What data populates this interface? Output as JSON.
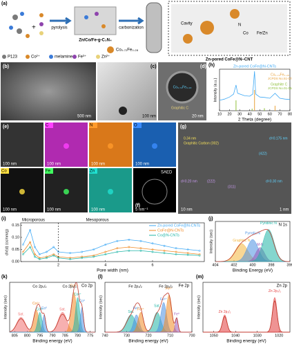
{
  "figure": {
    "a": {
      "label": "(a)",
      "legend": [
        "P123",
        "Co²⁺",
        "melamine",
        "Fe³⁺",
        "Zn²⁺"
      ],
      "step1": "pyrolysis",
      "step2": "carbonization",
      "intermediate": "Zn/Co/Fe-g-C₃N₄",
      "alloy": "Co₀.₇₂Fe₀.₂₈",
      "product": "Zn-pored CoFe@N–CNT",
      "inset": [
        "Cavity",
        "N",
        "Co",
        "Fe/Zn"
      ]
    },
    "b": {
      "label": "(b)",
      "scale": "500 nm"
    },
    "c": {
      "label": "(c)",
      "scale": "100 nm"
    },
    "d": {
      "label": "(d)",
      "particle": "Co₀.₇₂Fe₀.₂₈",
      "shell": "Graphitic C",
      "scale": "20 nm"
    },
    "e": {
      "label": "(e)",
      "maps": [
        "C",
        "N",
        "O",
        "Co",
        "Fe",
        "Zn"
      ],
      "scale": "100 nm"
    },
    "f": {
      "label": "(f)",
      "title": "SAED",
      "scale": "5 nm⁻¹"
    },
    "g": {
      "label": "(g)",
      "fringes": [
        "0.34 nm",
        "Graphitic Carbon (002)",
        "d=0.175 nm",
        "(422)",
        "d=0.20 nm",
        "(222)",
        "(311)",
        "d=0.30 nm"
      ],
      "scale": "10 nm",
      "inset_scale": "1 nm"
    }
  },
  "chart_data": [
    {
      "type": "xrd",
      "label": "(h)",
      "xlabel": "2 Theta (degree)",
      "ylabel": "Intensity (a.u.)",
      "xlim": [
        10,
        80
      ],
      "ylim": [
        0,
        1
      ],
      "xticks": [
        10,
        20,
        30,
        40,
        50,
        60,
        70,
        80
      ],
      "x": [
        10,
        15,
        20,
        24,
        26.4,
        28,
        35,
        40,
        43,
        44.8,
        46,
        50,
        55,
        60,
        65.2,
        70,
        75,
        80
      ],
      "series": [
        {
          "name": "Zn-pored CoFe@N-CNTs",
          "color": "#3fa9f5",
          "values": [
            0.25,
            0.28,
            0.33,
            0.4,
            0.62,
            0.42,
            0.36,
            0.35,
            0.4,
            0.95,
            0.4,
            0.33,
            0.32,
            0.3,
            0.42,
            0.3,
            0.28,
            0.27
          ]
        }
      ],
      "references": [
        {
          "name": "Co₀.₇₂Fe₀.₂₈",
          "card": "JCPDS No.51-0740",
          "color": "#e8a13a",
          "positions": [
            44.8,
            65.2
          ],
          "heights": [
            0.5,
            0.12
          ]
        },
        {
          "name": "Graphite C",
          "card": "JCPDS No.01-0646",
          "color": "#8fbf3a",
          "positions": [
            26.4,
            42.4,
            54.6
          ],
          "heights": [
            0.25,
            0.05,
            0.06
          ]
        }
      ]
    },
    {
      "type": "line",
      "label": "(i)",
      "xlabel": "Pore width (nm)",
      "ylabel": "dV(d) (cc/nm/g)",
      "xlim": [
        0.4,
        8.2
      ],
      "ylim": [
        0,
        0.16
      ],
      "xticks": [
        2,
        4,
        6
      ],
      "yticks": [
        {
          "value": 0,
          "label": "0.00"
        },
        {
          "value": 0.05,
          "label": "0.05"
        },
        {
          "value": 0.1,
          "label": "0.10"
        },
        {
          "value": 0.15,
          "label": "0.15"
        }
      ],
      "annotations": [
        "Microporous",
        "Mesoporous"
      ],
      "x": [
        0.5,
        0.8,
        1,
        1.2,
        1.5,
        1.8,
        2,
        2.5,
        3,
        3.5,
        4,
        4.5,
        5,
        5.5,
        6,
        6.5,
        7,
        7.5,
        8
      ],
      "series": [
        {
          "name": "Zn-pored CoFe@N-CNTs",
          "color": "#3fa9f5",
          "values": [
            0.07,
            0.13,
            0.06,
            0.03,
            0.04,
            0.06,
            0.04,
            0.035,
            0.04,
            0.05,
            0.07,
            0.085,
            0.09,
            0.085,
            0.075,
            0.065,
            0.055,
            0.05,
            0.045
          ]
        },
        {
          "name": "CoFe@N-CNTs",
          "color": "#f08a24",
          "values": [
            0.04,
            0.08,
            0.03,
            0.015,
            0.02,
            0.03,
            0.02,
            0.015,
            0.02,
            0.025,
            0.04,
            0.055,
            0.06,
            0.055,
            0.05,
            0.045,
            0.04,
            0.035,
            0.03
          ]
        },
        {
          "name": "Co@N-CNTs",
          "color": "#1fb5a6",
          "values": [
            0.03,
            0.06,
            0.02,
            0.01,
            0.015,
            0.025,
            0.015,
            0.01,
            0.015,
            0.02,
            0.03,
            0.04,
            0.045,
            0.045,
            0.04,
            0.035,
            0.03,
            0.028,
            0.025
          ]
        }
      ]
    },
    {
      "type": "xps",
      "label": "(j)",
      "title": "N 1s",
      "xlabel": "Binding Energy (eV)",
      "ylabel": "Intensity (sec)",
      "xlim": [
        404,
        396
      ],
      "ylim": [
        0,
        1
      ],
      "xticks": [
        404,
        402,
        400,
        398,
        396
      ],
      "peaks": [
        {
          "name": "Graphitic N",
          "center": 401.2,
          "height": 0.45,
          "width": 1.6,
          "color": "#f4b63c"
        },
        {
          "name": "Pyrrolic N",
          "center": 400,
          "height": 0.55,
          "width": 1.4,
          "color": "#4a90e2"
        },
        {
          "name": "M-N",
          "center": 399.2,
          "height": 0.35,
          "width": 1.1,
          "color": "#9b59b6"
        },
        {
          "name": "Pyridinic N",
          "center": 398.3,
          "height": 0.8,
          "width": 1.4,
          "color": "#1fb5a6"
        }
      ]
    },
    {
      "type": "xps",
      "label": "(k)",
      "title": "Co 2p",
      "xlabel": "Binding energy (eV)",
      "ylabel": "Intensity (sec)",
      "xlim": [
        807,
        773
      ],
      "ylim": [
        0,
        1
      ],
      "xticks": [
        805,
        800,
        795,
        790,
        785,
        780,
        775
      ],
      "annotations": [
        "Co 2p₁/₂",
        "Co 2p₃/₂"
      ],
      "peaks": [
        {
          "name": "Sat.",
          "center": 802.5,
          "height": 0.3,
          "width": 4,
          "color": "#f07070"
        },
        {
          "name": "Co²⁺",
          "center": 796.5,
          "height": 0.45,
          "width": 2.5,
          "color": "#f08a24"
        },
        {
          "name": "Co³⁺",
          "center": 795,
          "height": 0.4,
          "width": 2,
          "color": "#1fb5a6"
        },
        {
          "name": "Co⁰",
          "center": 793.3,
          "height": 0.35,
          "width": 1.5,
          "color": "#4a90e2"
        },
        {
          "name": "Sat.",
          "center": 786,
          "height": 0.4,
          "width": 4,
          "color": "#f07070"
        },
        {
          "name": "Co²⁺",
          "center": 781.5,
          "height": 0.8,
          "width": 2.5,
          "color": "#f08a24"
        },
        {
          "name": "Co³⁺",
          "center": 780,
          "height": 0.7,
          "width": 2,
          "color": "#1fb5a6"
        },
        {
          "name": "Co⁰",
          "center": 778.3,
          "height": 0.5,
          "width": 1.5,
          "color": "#4a90e2"
        }
      ]
    },
    {
      "type": "xps",
      "label": "(l)",
      "title": "Fe 2p",
      "xlabel": "Binding energy (eV)",
      "ylabel": "Intensity (sec)",
      "xlim": [
        740,
        700
      ],
      "ylim": [
        0,
        1
      ],
      "xticks": [
        740,
        730,
        720,
        710,
        700
      ],
      "annotations": [
        "Fe 2p₁/₂",
        "Fe 2p₃/₂"
      ],
      "peaks": [
        {
          "name": "Sat.",
          "center": 728,
          "height": 0.35,
          "width": 5,
          "color": "#1fb5a6"
        },
        {
          "name": "Fe³⁺",
          "center": 725.5,
          "height": 0.35,
          "width": 3,
          "color": "#4a90e2"
        },
        {
          "name": "Fe²⁺",
          "center": 723.5,
          "height": 0.4,
          "width": 3,
          "color": "#f08a24"
        },
        {
          "name": "Sat.",
          "center": 716,
          "height": 0.4,
          "width": 4,
          "color": "#1fb5a6"
        },
        {
          "name": "Fe³⁺",
          "center": 713,
          "height": 0.6,
          "width": 3,
          "color": "#4a90e2"
        },
        {
          "name": "Fe²⁺",
          "center": 710.5,
          "height": 0.75,
          "width": 3,
          "color": "#f08a24"
        },
        {
          "name": "Fe⁰",
          "center": 707,
          "height": 0.3,
          "width": 1.5,
          "color": "#9b59b6"
        }
      ]
    },
    {
      "type": "xps",
      "label": "(m)",
      "title": "Zn 2p",
      "xlabel": "Binding energy (eV)",
      "ylabel": "Intensity (sec)",
      "xlim": [
        1055,
        1015
      ],
      "ylim": [
        0,
        1
      ],
      "xticks": [
        1050,
        1040,
        1030,
        1020
      ],
      "peaks": [
        {
          "name": "Zn 2p₁/₂",
          "center": 1045,
          "height": 0.35,
          "width": 2.5,
          "color": "#e23b3b"
        },
        {
          "name": "Zn 2p₃/₂",
          "center": 1022,
          "height": 0.7,
          "width": 2.5,
          "color": "#e23b3b"
        }
      ]
    }
  ]
}
